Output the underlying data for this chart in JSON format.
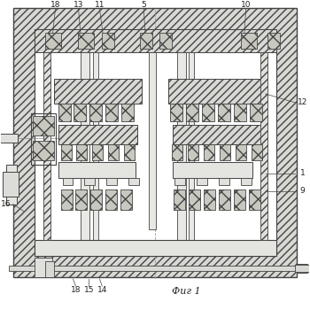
{
  "figsize": [
    3.5,
    3.58
  ],
  "dpi": 100,
  "bg": "white",
  "lc": "#444444",
  "hatch_fc": "#d8d8d4",
  "cross_fc": "#c8c8c0",
  "fig_label": "Фиг 1"
}
